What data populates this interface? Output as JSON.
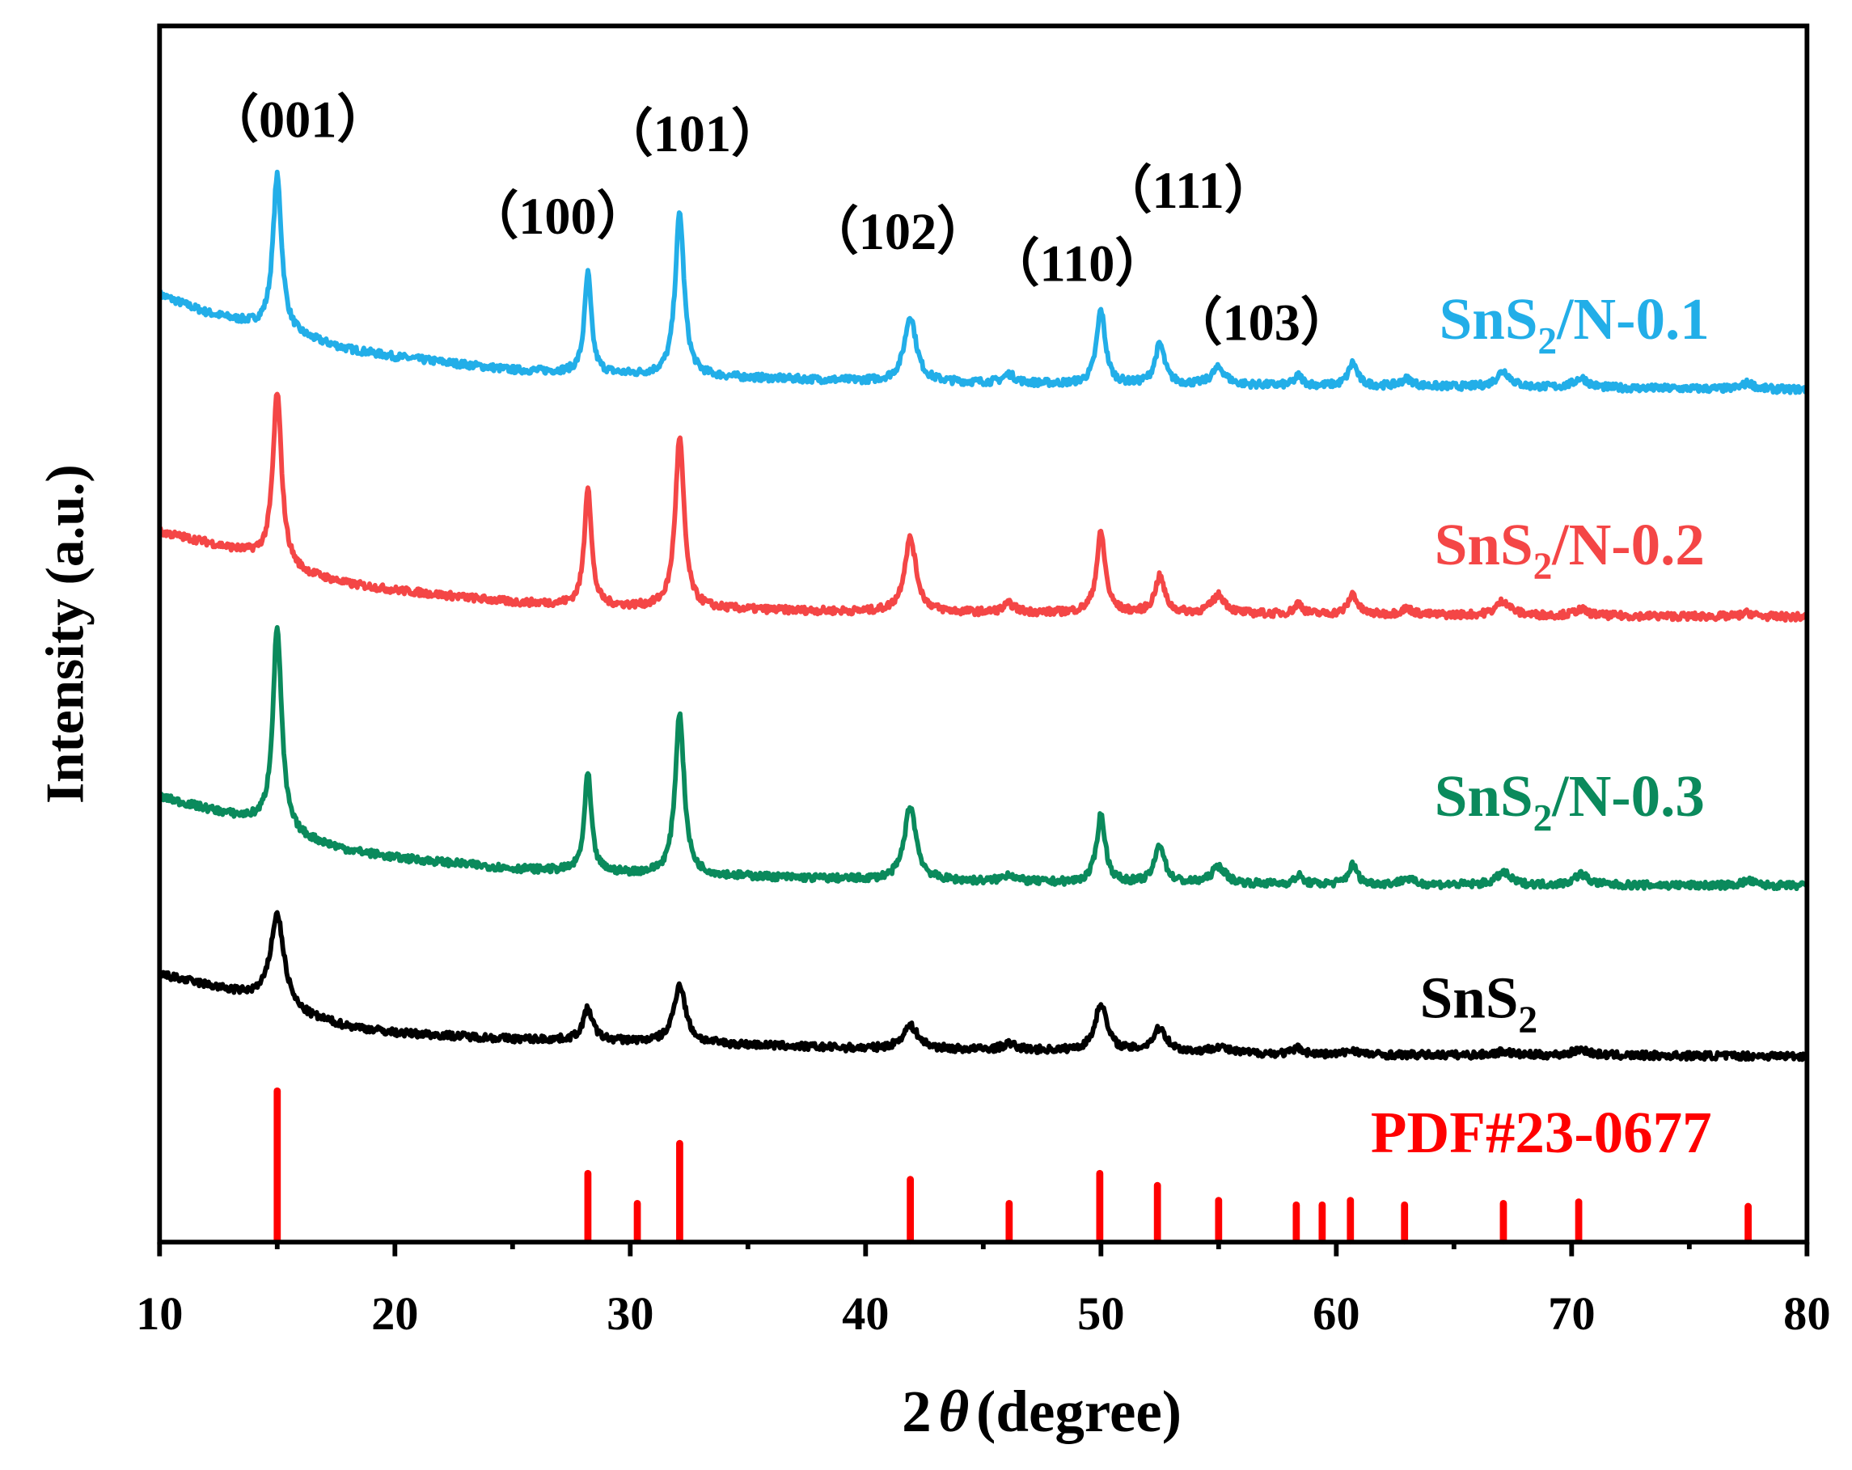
{
  "chart_data": {
    "type": "line",
    "xlabel_prefix": "2",
    "xlabel_symbol": "θ",
    "xlabel_suffix": "(degree)",
    "ylabel": "Intensity (a.u.)",
    "xlim": [
      10,
      80
    ],
    "xticks": [
      10,
      20,
      30,
      40,
      50,
      60,
      70,
      80
    ],
    "yticks": [],
    "grid": false,
    "legend": "inline labels at right of each curve",
    "series": [
      {
        "name": "SnS2/N-0.1",
        "color": "#22AEE8",
        "baseline": [
          [
            10,
            779
          ],
          [
            12,
            764
          ],
          [
            14,
            754
          ],
          [
            16,
            744
          ],
          [
            18,
            734
          ],
          [
            20,
            728
          ],
          [
            25,
            717
          ],
          [
            30,
            713
          ],
          [
            40,
            708
          ],
          [
            50,
            705
          ],
          [
            60,
            704
          ],
          [
            80,
            701
          ]
        ],
        "peaks": [
          [
            15.0,
            128,
            0.45
          ],
          [
            28.2,
            82,
            0.35
          ],
          [
            32.1,
            134,
            0.45
          ],
          [
            41.9,
            54,
            0.6
          ],
          [
            46.1,
            7,
            0.6
          ],
          [
            50.0,
            61,
            0.45
          ],
          [
            52.5,
            33,
            0.5
          ],
          [
            55.0,
            14,
            0.7
          ],
          [
            58.4,
            8,
            0.4
          ],
          [
            60.7,
            19,
            0.45
          ],
          [
            63.0,
            6,
            0.6
          ],
          [
            67.1,
            13,
            0.7
          ],
          [
            70.4,
            8,
            0.7
          ],
          [
            77.5,
            5,
            0.6
          ]
        ]
      },
      {
        "name": "SnS2/N-0.2",
        "color": "#F44646",
        "baseline": [
          [
            10,
            584
          ],
          [
            12,
            575
          ],
          [
            14,
            565
          ],
          [
            16,
            550
          ],
          [
            18,
            541
          ],
          [
            20,
            536
          ],
          [
            25,
            526
          ],
          [
            30,
            522
          ],
          [
            40,
            518
          ],
          [
            50,
            517
          ],
          [
            60,
            516
          ],
          [
            80,
            514
          ]
        ],
        "peaks": [
          [
            15.0,
            141,
            0.45
          ],
          [
            28.2,
            99,
            0.35
          ],
          [
            32.1,
            140,
            0.45
          ],
          [
            41.9,
            61,
            0.6
          ],
          [
            46.1,
            7,
            0.6
          ],
          [
            50.0,
            66,
            0.45
          ],
          [
            52.5,
            30,
            0.5
          ],
          [
            55.0,
            15,
            0.7
          ],
          [
            58.4,
            9,
            0.4
          ],
          [
            60.7,
            17,
            0.45
          ],
          [
            63.0,
            5,
            0.6
          ],
          [
            67.1,
            12,
            0.7
          ],
          [
            70.4,
            5,
            0.7
          ],
          [
            77.5,
            3,
            0.6
          ]
        ]
      },
      {
        "name": "SnS2/N-0.3",
        "color": "#0A8A5C",
        "baseline": [
          [
            10,
            366
          ],
          [
            12,
            356
          ],
          [
            14,
            346
          ],
          [
            16,
            332
          ],
          [
            18,
            322
          ],
          [
            20,
            316
          ],
          [
            25,
            307
          ],
          [
            30,
            303
          ],
          [
            40,
            298
          ],
          [
            50,
            295
          ],
          [
            60,
            294
          ],
          [
            80,
            293
          ]
        ],
        "peaks": [
          [
            15.0,
            167,
            0.45
          ],
          [
            28.2,
            81,
            0.35
          ],
          [
            32.1,
            133,
            0.45
          ],
          [
            41.9,
            61,
            0.6
          ],
          [
            46.1,
            6,
            0.6
          ],
          [
            50.0,
            56,
            0.45
          ],
          [
            52.5,
            32,
            0.5
          ],
          [
            55.0,
            14,
            0.7
          ],
          [
            58.4,
            7,
            0.4
          ],
          [
            60.7,
            16,
            0.45
          ],
          [
            63.0,
            5,
            0.6
          ],
          [
            67.1,
            10,
            0.7
          ],
          [
            70.4,
            9,
            0.7
          ],
          [
            77.5,
            4,
            0.6
          ]
        ]
      },
      {
        "name": "SnS2",
        "color": "#000000",
        "baseline": [
          [
            10,
            220
          ],
          [
            12,
            211
          ],
          [
            14,
            201
          ],
          [
            16,
            186
          ],
          [
            18,
            177
          ],
          [
            20,
            172
          ],
          [
            25,
            167
          ],
          [
            30,
            165
          ],
          [
            40,
            159
          ],
          [
            50,
            157
          ],
          [
            60,
            154
          ],
          [
            80,
            153
          ]
        ],
        "peaks": [
          [
            15.0,
            76,
            0.7
          ],
          [
            28.2,
            26,
            0.5
          ],
          [
            32.1,
            48,
            0.6
          ],
          [
            41.9,
            19,
            0.8
          ],
          [
            46.1,
            5,
            0.7
          ],
          [
            50.0,
            39,
            0.6
          ],
          [
            52.5,
            19,
            0.7
          ],
          [
            55.0,
            5,
            0.8
          ],
          [
            58.4,
            5,
            0.5
          ],
          [
            60.7,
            4,
            0.6
          ],
          [
            67.1,
            3,
            0.8
          ],
          [
            70.4,
            5,
            0.8
          ]
        ]
      }
    ],
    "reference": {
      "name": "PDF#23-0677",
      "color": "#FF0000",
      "positions": [
        15.0,
        28.2,
        30.3,
        32.1,
        41.9,
        46.1,
        49.95,
        52.4,
        55.0,
        58.3,
        59.4,
        60.6,
        62.9,
        67.1,
        70.3,
        77.5
      ],
      "intensities": [
        100,
        45,
        25,
        65,
        41,
        25,
        45,
        37,
        27,
        24,
        24,
        27,
        24,
        25,
        26,
        23
      ]
    },
    "annotations": [
      {
        "text": "（001）",
        "x": 15.0
      },
      {
        "text": "（100）",
        "x": 28.2
      },
      {
        "text": "（101）",
        "x": 32.1
      },
      {
        "text": "（102）",
        "x": 41.9
      },
      {
        "text": "（110）",
        "x": 50.0
      },
      {
        "text": "（111）",
        "x": 52.5
      },
      {
        "text": "（103）",
        "x": 55.0
      }
    ]
  }
}
